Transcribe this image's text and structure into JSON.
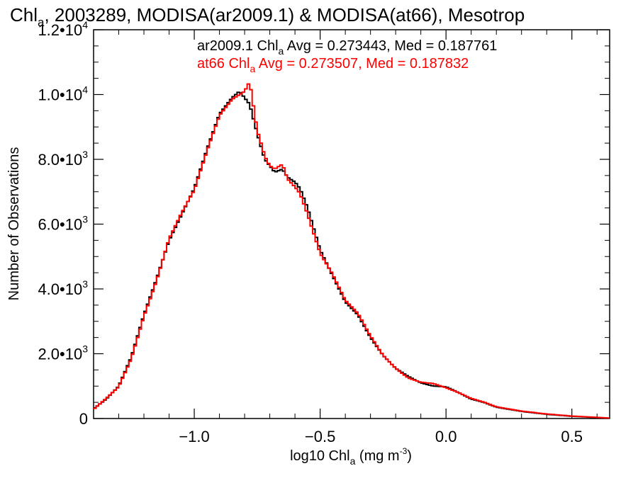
{
  "chart_data": {
    "type": "line",
    "step": true,
    "title_main": "Chl",
    "title_sub": "a",
    "title_rest": ", 2003289, MODISA(ar2009.1) & MODISA(at66), Mesotrop",
    "xlabel_main": "log10 Chl",
    "xlabel_sub": "a",
    "xlabel_unit": " (mg m",
    "xlabel_sup": "-3",
    "xlabel_close": ")",
    "ylabel": "Number of Observations",
    "xlim": [
      -1.4,
      0.65
    ],
    "ylim": [
      0,
      12000
    ],
    "x_ticks": [
      -1.0,
      -0.5,
      0.0,
      0.5
    ],
    "x_tick_labels": [
      "−1.0",
      "−0.5",
      "0.0",
      "0.5"
    ],
    "y_ticks": [
      0,
      2000,
      4000,
      6000,
      8000,
      10000,
      12000
    ],
    "y_tick_labels": [
      {
        "mant": "0",
        "exp": ""
      },
      {
        "mant": "2.0•10",
        "exp": "3"
      },
      {
        "mant": "4.0•10",
        "exp": "3"
      },
      {
        "mant": "6.0•10",
        "exp": "3"
      },
      {
        "mant": "8.0•10",
        "exp": "3"
      },
      {
        "mant": "1.0•10",
        "exp": "4"
      },
      {
        "mant": "1.2•10",
        "exp": "4"
      }
    ],
    "series": [
      {
        "name": "ar2009.1",
        "color": "#000000",
        "legend_pre": "ar2009.1 Chl",
        "legend_sub": "a",
        "legend_post": " Avg = 0.273443, Med = 0.187761",
        "x": [
          -1.4,
          -1.35,
          -1.3,
          -1.25,
          -1.2,
          -1.15,
          -1.1,
          -1.05,
          -1.0,
          -0.95,
          -0.9,
          -0.85,
          -0.82,
          -0.8,
          -0.78,
          -0.75,
          -0.72,
          -0.7,
          -0.68,
          -0.65,
          -0.63,
          -0.6,
          -0.58,
          -0.55,
          -0.5,
          -0.45,
          -0.4,
          -0.35,
          -0.3,
          -0.25,
          -0.2,
          -0.15,
          -0.1,
          -0.05,
          0.0,
          0.05,
          0.1,
          0.15,
          0.2,
          0.3,
          0.4,
          0.5,
          0.6,
          0.65
        ],
        "y": [
          300,
          600,
          1000,
          1900,
          3200,
          4300,
          5500,
          6300,
          7100,
          8300,
          9400,
          9900,
          10100,
          9900,
          9700,
          8800,
          8000,
          7800,
          7600,
          7700,
          7450,
          7300,
          7100,
          6500,
          5200,
          4400,
          3600,
          3200,
          2500,
          1950,
          1550,
          1300,
          1100,
          1000,
          980,
          800,
          600,
          500,
          350,
          220,
          130,
          70,
          30,
          10
        ]
      },
      {
        "name": "at66",
        "color": "#ff0000",
        "legend_pre": "at66 Chl",
        "legend_sub": "a",
        "legend_post": " Avg = 0.273507, Med = 0.187832",
        "x": [
          -1.4,
          -1.35,
          -1.3,
          -1.25,
          -1.2,
          -1.15,
          -1.1,
          -1.05,
          -1.0,
          -0.95,
          -0.9,
          -0.85,
          -0.82,
          -0.8,
          -0.78,
          -0.75,
          -0.72,
          -0.7,
          -0.68,
          -0.65,
          -0.63,
          -0.6,
          -0.58,
          -0.55,
          -0.5,
          -0.45,
          -0.4,
          -0.35,
          -0.3,
          -0.25,
          -0.2,
          -0.15,
          -0.1,
          -0.05,
          0.0,
          0.05,
          0.1,
          0.15,
          0.2,
          0.3,
          0.4,
          0.5,
          0.6,
          0.65
        ],
        "y": [
          280,
          620,
          980,
          1850,
          3150,
          4250,
          5550,
          6350,
          7050,
          8250,
          9350,
          9850,
          10000,
          10100,
          10400,
          8900,
          8100,
          7800,
          7700,
          7850,
          7400,
          7150,
          6950,
          6300,
          5100,
          4450,
          3650,
          3250,
          2550,
          1950,
          1550,
          1250,
          1120,
          1080,
          950,
          800,
          620,
          510,
          360,
          230,
          140,
          75,
          35,
          12
        ]
      }
    ],
    "grid": false
  }
}
